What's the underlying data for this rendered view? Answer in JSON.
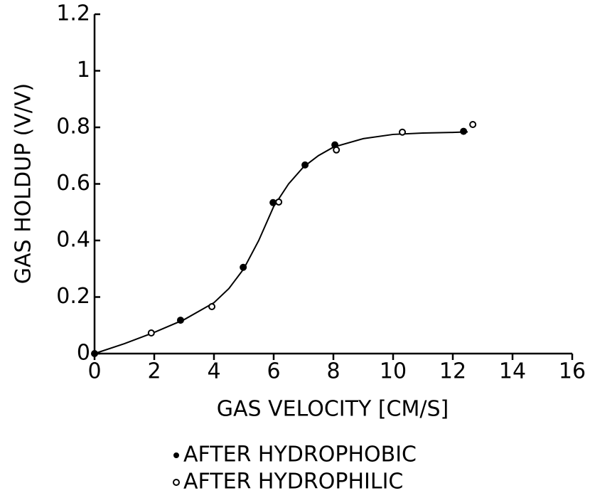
{
  "chart_data": {
    "type": "scatter",
    "x_label": "GAS VELOCITY [CM/S]",
    "y_label": "GAS HOLDUP (V/V)",
    "xlim": [
      0,
      16
    ],
    "xticks": [
      0,
      2,
      4,
      6,
      8,
      10,
      12,
      14,
      16
    ],
    "ylim": [
      0,
      1.2
    ],
    "yticks": [
      0,
      0.2,
      0.4,
      0.6,
      0.8,
      1,
      1.2
    ],
    "series": [
      {
        "name": "AFTER HYDROPHOBIC",
        "marker": "filled",
        "color": "#000000",
        "x": [
          0,
          2.88,
          4.98,
          5.98,
          7.05,
          8.05,
          12.36
        ],
        "values": [
          0,
          0.118,
          0.305,
          0.534,
          0.667,
          0.738,
          0.786
        ]
      },
      {
        "name": "AFTER HYDROPHILIC",
        "marker": "open",
        "color": "#000000",
        "x": [
          1.9,
          3.93,
          6.17,
          8.1,
          10.31,
          12.67
        ],
        "values": [
          0.073,
          0.166,
          0.536,
          0.72,
          0.783,
          0.81
        ]
      }
    ],
    "curve": {
      "color": "#000000",
      "x": [
        0,
        1,
        2,
        3,
        4,
        4.5,
        5,
        5.5,
        6,
        6.5,
        7,
        7.5,
        8,
        9,
        10,
        11,
        12,
        12.5
      ],
      "values": [
        0,
        0.035,
        0.075,
        0.12,
        0.18,
        0.23,
        0.3,
        0.4,
        0.52,
        0.6,
        0.66,
        0.7,
        0.73,
        0.76,
        0.775,
        0.78,
        0.782,
        0.784
      ]
    }
  }
}
